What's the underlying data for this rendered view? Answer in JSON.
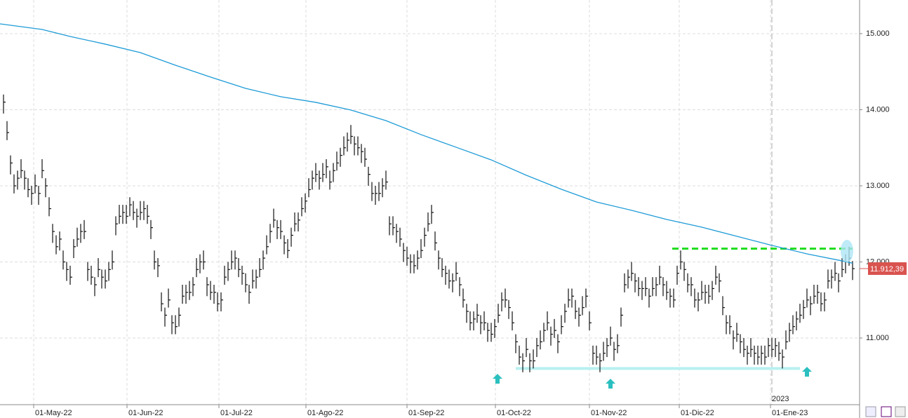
{
  "chart_data": {
    "type": "ohlc",
    "xlim": [
      -1,
      244
    ],
    "ylim": [
      10124,
      15442
    ],
    "grid": true,
    "xticks": [
      {
        "value": 8.6,
        "label": "01-May-22"
      },
      {
        "value": 35.2,
        "label": "01-Jun-22"
      },
      {
        "value": 61.4,
        "label": "01-Jul-22"
      },
      {
        "value": 86.2,
        "label": "01-Ago-22"
      },
      {
        "value": 115,
        "label": "01-Sep-22"
      },
      {
        "value": 140.2,
        "label": "01-Oct-22"
      },
      {
        "value": 167,
        "label": "01-Nov-22"
      },
      {
        "value": 192.6,
        "label": "01-Dic-22"
      },
      {
        "value": 218.6,
        "label": "01-Ene-23"
      }
    ],
    "yticks": [
      {
        "value": 11000,
        "label": "11.000"
      },
      {
        "value": 12000,
        "label": "12.000"
      },
      {
        "value": 13000,
        "label": "13.000"
      },
      {
        "value": 14000,
        "label": "14.000"
      },
      {
        "value": 15000,
        "label": "15.000"
      }
    ],
    "year_marker": {
      "value": 219,
      "label": "2023"
    },
    "bars": {
      "color": "#111111",
      "close": [
        14100,
        13700,
        13300,
        13000,
        13100,
        13200,
        13100,
        12950,
        12900,
        13000,
        12900,
        13200,
        13000,
        12700,
        12400,
        12200,
        12300,
        12000,
        11900,
        11800,
        12200,
        12300,
        12400,
        12400,
        11900,
        11800,
        11700,
        11900,
        11800,
        11750,
        11900,
        12000,
        12500,
        12600,
        12650,
        12600,
        12750,
        12650,
        12600,
        12650,
        12700,
        12600,
        12450,
        12000,
        11950,
        11450,
        11300,
        11500,
        11200,
        11150,
        11300,
        11550,
        11600,
        11600,
        11700,
        11900,
        12000,
        12000,
        11700,
        11600,
        11600,
        11450,
        11500,
        11800,
        11900,
        12000,
        12050,
        11900,
        11850,
        11700,
        11600,
        11750,
        11800,
        11900,
        12050,
        12200,
        12400,
        12550,
        12450,
        12400,
        12250,
        12150,
        12350,
        12500,
        12550,
        12700,
        12800,
        12950,
        13100,
        13150,
        13100,
        13150,
        13250,
        13050,
        13200,
        13300,
        13400,
        13500,
        13600,
        13650,
        13550,
        13500,
        13450,
        13350,
        13150,
        12900,
        12900,
        12900,
        13000,
        13050,
        12500,
        12450,
        12400,
        12300,
        12150,
        12050,
        12000,
        11950,
        12050,
        12150,
        12350,
        12500,
        12650,
        12250,
        12050,
        11900,
        11850,
        11750,
        11750,
        11850,
        11700,
        11500,
        11350,
        11200,
        11250,
        11300,
        11200,
        11200,
        11100,
        11050,
        11150,
        11300,
        11500,
        11500,
        11400,
        11200,
        10950,
        10750,
        10700,
        10850,
        10700,
        10700,
        10900,
        10950,
        11100,
        11200,
        11050,
        11100,
        10950,
        11150,
        11350,
        11500,
        11550,
        11350,
        11300,
        11400,
        11550,
        11200,
        10800,
        10750,
        10700,
        10800,
        10900,
        11000,
        10850,
        10900,
        11300,
        11700,
        11800,
        11850,
        11750,
        11650,
        11650,
        11650,
        11550,
        11650,
        11700,
        11800,
        11700,
        11600,
        11550,
        11500,
        11850,
        12000,
        11900,
        11700,
        11700,
        11500,
        11500,
        11600,
        11600,
        11550,
        11650,
        11800,
        11750,
        11400,
        11200,
        11150,
        11000,
        11050,
        10950,
        10850,
        10800,
        10850,
        10800,
        10750,
        10800,
        10750,
        10900,
        10850,
        10900,
        10800,
        10750,
        10950,
        11100,
        11150,
        11250,
        11300,
        11400,
        11500,
        11450,
        11550,
        11600,
        11450,
        11500,
        11750,
        11800,
        11850,
        11750,
        11900,
        12000,
        12050,
        11912
      ],
      "high": [
        14200,
        13850,
        13400,
        13150,
        13200,
        13350,
        13200,
        13100,
        13000,
        13150,
        13000,
        13350,
        13100,
        12850,
        12500,
        12350,
        12400,
        12150,
        12000,
        11950,
        12300,
        12450,
        12500,
        12550,
        12000,
        11950,
        11800,
        12050,
        11900,
        11900,
        12000,
        12150,
        12600,
        12750,
        12750,
        12750,
        12850,
        12800,
        12700,
        12800,
        12800,
        12750,
        12550,
        12150,
        12050,
        11600,
        11400,
        11650,
        11300,
        11300,
        11400,
        11700,
        11700,
        11750,
        11800,
        12050,
        12100,
        12150,
        11800,
        11750,
        11700,
        11600,
        11600,
        11950,
        12000,
        12150,
        12150,
        12050,
        11950,
        11850,
        11700,
        11900,
        11900,
        12050,
        12150,
        12350,
        12500,
        12700,
        12550,
        12550,
        12350,
        12300,
        12450,
        12650,
        12650,
        12850,
        12900,
        13100,
        13200,
        13300,
        13200,
        13300,
        13350,
        13200,
        13300,
        13450,
        13500,
        13650,
        13700,
        13800,
        13650,
        13650,
        13550,
        13500,
        13250,
        13050,
        13000,
        13050,
        13100,
        13200,
        12600,
        12600,
        12500,
        12450,
        12250,
        12200,
        12100,
        12100,
        12150,
        12300,
        12450,
        12650,
        12750,
        12400,
        12150,
        12050,
        11950,
        11900,
        11850,
        12000,
        11800,
        11650,
        11450,
        11350,
        11350,
        11450,
        11300,
        11350,
        11200,
        11200,
        11250,
        11450,
        11600,
        11650,
        11500,
        11350,
        11050,
        10900,
        10800,
        11000,
        10800,
        10850,
        11000,
        11100,
        11200,
        11350,
        11150,
        11250,
        11050,
        11300,
        11450,
        11650,
        11650,
        11500,
        11400,
        11550,
        11650,
        11350,
        10900,
        10900,
        10800,
        10950,
        11000,
        11150,
        10950,
        11050,
        11400,
        11850,
        11900,
        12000,
        11850,
        11800,
        11750,
        11800,
        11650,
        11800,
        11800,
        11950,
        11800,
        11750,
        11650,
        11650,
        11950,
        12150,
        12000,
        11850,
        11800,
        11650,
        11600,
        11750,
        11700,
        11700,
        11750,
        11950,
        11850,
        11550,
        11300,
        11300,
        11100,
        11200,
        11050,
        11000,
        10900,
        11000,
        10900,
        10900,
        10900,
        10900,
        11000,
        11000,
        11000,
        10950,
        10850,
        11100,
        11200,
        11300,
        11350,
        11450,
        11500,
        11650,
        11550,
        11700,
        11700,
        11600,
        11600,
        11900,
        11900,
        12000,
        11850,
        12050,
        12100,
        12200,
        12012
      ],
      "low": [
        13950,
        13600,
        13150,
        12900,
        12950,
        13100,
        12950,
        12850,
        12750,
        12900,
        12750,
        13100,
        12850,
        12600,
        12250,
        12100,
        12150,
        11900,
        11750,
        11700,
        12050,
        12200,
        12250,
        12300,
        11750,
        11700,
        11550,
        11800,
        11650,
        11650,
        11750,
        11900,
        12350,
        12500,
        12500,
        12500,
        12600,
        12550,
        12450,
        12550,
        12550,
        12500,
        12300,
        11900,
        11800,
        11350,
        11150,
        11400,
        11050,
        11050,
        11150,
        11450,
        11450,
        11500,
        11550,
        11800,
        11850,
        11900,
        11550,
        11500,
        11450,
        11350,
        11350,
        11700,
        11750,
        11900,
        11900,
        11800,
        11700,
        11600,
        11450,
        11650,
        11650,
        11800,
        11900,
        12100,
        12250,
        12450,
        12300,
        12300,
        12100,
        12050,
        12200,
        12400,
        12400,
        12600,
        12650,
        12850,
        12950,
        13050,
        12950,
        13050,
        13100,
        12950,
        13050,
        13200,
        13250,
        13400,
        13450,
        13550,
        13400,
        13400,
        13300,
        13250,
        13000,
        12800,
        12750,
        12800,
        12850,
        12950,
        12350,
        12350,
        12250,
        12200,
        12000,
        11950,
        11850,
        11850,
        11900,
        12050,
        12200,
        12400,
        12500,
        12150,
        11900,
        11800,
        11700,
        11650,
        11600,
        11750,
        11550,
        11400,
        11200,
        11100,
        11100,
        11200,
        11050,
        11100,
        10950,
        10950,
        11000,
        11200,
        11350,
        11400,
        11250,
        11100,
        10800,
        10650,
        10550,
        10750,
        10550,
        10600,
        10750,
        10850,
        10950,
        11100,
        10900,
        11000,
        10800,
        11050,
        11200,
        11400,
        11400,
        11250,
        11150,
        11300,
        11400,
        11100,
        10650,
        10650,
        10550,
        10700,
        10750,
        10900,
        10700,
        10800,
        11150,
        11600,
        11650,
        11750,
        11600,
        11550,
        11500,
        11550,
        11400,
        11550,
        11550,
        11700,
        11550,
        11500,
        11400,
        11400,
        11700,
        11900,
        11750,
        11600,
        11550,
        11400,
        11350,
        11500,
        11450,
        11450,
        11500,
        11700,
        11600,
        11300,
        11050,
        11050,
        10850,
        10950,
        10800,
        10750,
        10650,
        10750,
        10650,
        10650,
        10650,
        10650,
        10750,
        10750,
        10750,
        10700,
        10600,
        10850,
        10950,
        11050,
        11100,
        11200,
        11250,
        11400,
        11300,
        11450,
        11450,
        11350,
        11350,
        11650,
        11650,
        11750,
        11600,
        11800,
        11850,
        11950,
        11762
      ]
    },
    "moving_average": {
      "color": "#1e9bd7",
      "x": [
        -1,
        11,
        19,
        29,
        39,
        49,
        59,
        69,
        79,
        89,
        99,
        109,
        119,
        129,
        139,
        149,
        159,
        169,
        179,
        189,
        199,
        209,
        219,
        229,
        239,
        242
      ],
      "values": [
        15129,
        15055,
        14963,
        14862,
        14751,
        14585,
        14429,
        14281,
        14171,
        14097,
        13996,
        13857,
        13673,
        13507,
        13341,
        13139,
        12955,
        12788,
        12678,
        12558,
        12457,
        12337,
        12217,
        12106,
        12014,
        11982
      ]
    },
    "lines": [
      {
        "value": 12175,
        "x": [
          190.6,
          242
        ],
        "color": "#22dd22",
        "dashed": true
      },
      {
        "value": 10600,
        "x": [
          146,
          227
        ],
        "color": "#b8f0f0",
        "dashed": false
      }
    ],
    "last_price": {
      "value": 11912.39,
      "label": "11.912,39",
      "color": "#d9534f"
    }
  }
}
